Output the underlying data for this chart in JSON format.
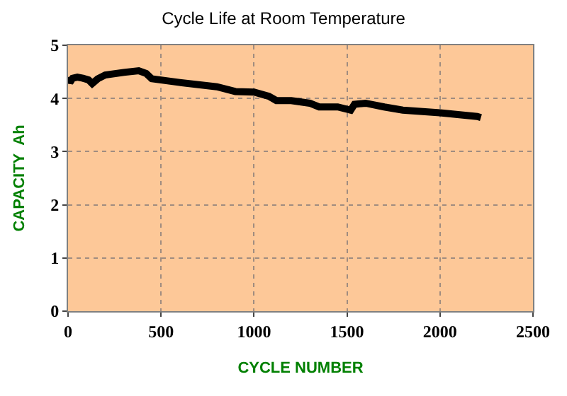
{
  "chart_data": {
    "type": "line",
    "title": "Cycle Life at Room Temperature",
    "xlabel": "CYCLE NUMBER",
    "ylabel": "CAPACITY  Ah",
    "x": [
      0,
      10,
      25,
      50,
      80,
      110,
      130,
      160,
      200,
      300,
      380,
      420,
      450,
      600,
      800,
      900,
      1000,
      1080,
      1120,
      1200,
      1300,
      1350,
      1450,
      1520,
      1540,
      1600,
      1700,
      1800,
      2000,
      2200,
      2220
    ],
    "series": [
      {
        "color": "#000000",
        "values": [
          4.4,
          4.3,
          4.38,
          4.4,
          4.38,
          4.35,
          4.28,
          4.37,
          4.44,
          4.49,
          4.52,
          4.47,
          4.37,
          4.3,
          4.22,
          4.13,
          4.12,
          4.04,
          3.96,
          3.96,
          3.91,
          3.84,
          3.84,
          3.78,
          3.89,
          3.91,
          3.84,
          3.78,
          3.73,
          3.66,
          3.64
        ]
      }
    ],
    "xlim": [
      0,
      2500
    ],
    "xticks": [
      0,
      500,
      1000,
      1500,
      2000,
      2500
    ],
    "ylim": [
      0,
      5
    ],
    "yticks": [
      0,
      1,
      2,
      3,
      4,
      5
    ],
    "grid": true,
    "marker": "none",
    "line_style": "solid"
  }
}
